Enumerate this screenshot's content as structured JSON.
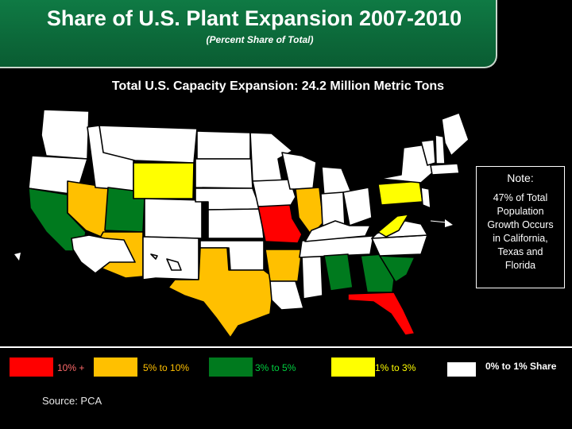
{
  "header": {
    "title": "Share of U.S. Plant Expansion 2007-2010",
    "subtitle": "(Percent Share of Total)"
  },
  "caption": "Total U.S. Capacity Expansion: 24.2 Million Metric Tons",
  "note": {
    "title": "Note:",
    "lines": [
      "47% of Total",
      "Population",
      "Growth Occurs",
      "in California,",
      "Texas and",
      "Florida"
    ]
  },
  "legend": [
    {
      "label": "10% +",
      "color": "#ff0000",
      "text_color": "#ff6a6a"
    },
    {
      "label": "5% to 10%",
      "color": "#ffc000",
      "text_color": "#ffc000"
    },
    {
      "label": "3% to 5%",
      "color": "#007a1e",
      "text_color": "#00d040"
    },
    {
      "label": "1% to 3%",
      "color": "#ffff00",
      "text_color": "#ffff00"
    },
    {
      "label": "0% to 1% Share",
      "color": "#ffffff",
      "text_color": "#ffffff"
    }
  ],
  "source": "Source: PCA",
  "map_states": {
    "10_plus": [
      "Missouri",
      "Florida"
    ],
    "5_to_10": [
      "Nevada",
      "Arizona",
      "Texas",
      "Illinois",
      "Arkansas"
    ],
    "3_to_5": [
      "California",
      "Utah",
      "Alabama",
      "Georgia",
      "South Carolina"
    ],
    "1_to_3": [
      "Wyoming",
      "Pennsylvania",
      "West Virginia"
    ],
    "0_to_1": "all other states"
  }
}
